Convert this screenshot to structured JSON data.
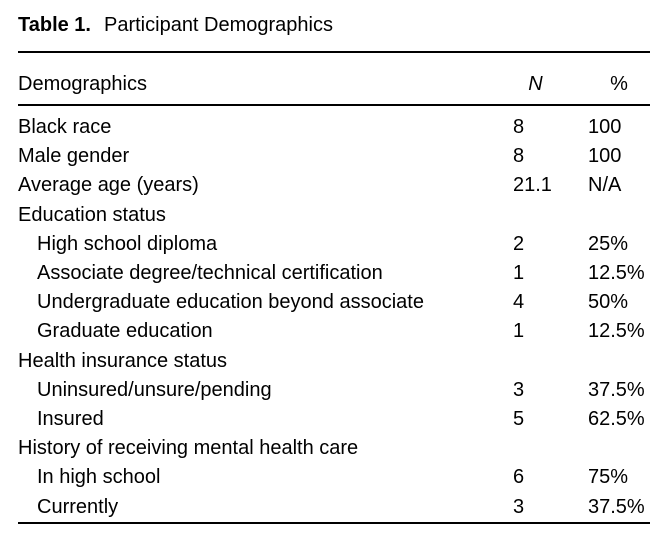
{
  "title": {
    "label": "Table 1.",
    "caption": "Participant Demographics"
  },
  "table": {
    "headers": [
      "Demographics",
      "N",
      "%"
    ],
    "rows": [
      {
        "label": "Black race",
        "n": "8",
        "pct": "100",
        "indent": false
      },
      {
        "label": "Male gender",
        "n": "8",
        "pct": "100",
        "indent": false
      },
      {
        "label": "Average age (years)",
        "n": "21.1",
        "pct": "N/A",
        "indent": false
      },
      {
        "label": "Education status",
        "n": "",
        "pct": "",
        "indent": false
      },
      {
        "label": "High school diploma",
        "n": "2",
        "pct": "25%",
        "indent": true
      },
      {
        "label": "Associate degree/technical certification",
        "n": "1",
        "pct": "12.5%",
        "indent": true
      },
      {
        "label": "Undergraduate education beyond associate",
        "n": "4",
        "pct": "50%",
        "indent": true
      },
      {
        "label": "Graduate education",
        "n": "1",
        "pct": "12.5%",
        "indent": true
      },
      {
        "label": "Health insurance status",
        "n": "",
        "pct": "",
        "indent": false
      },
      {
        "label": "Uninsured/unsure/pending",
        "n": "3",
        "pct": "37.5%",
        "indent": true
      },
      {
        "label": "Insured",
        "n": "5",
        "pct": "62.5%",
        "indent": true
      },
      {
        "label": "History of receiving mental health care",
        "n": "",
        "pct": "",
        "indent": false
      },
      {
        "label": "In high school",
        "n": "6",
        "pct": "75%",
        "indent": true
      },
      {
        "label": "Currently",
        "n": "3",
        "pct": "37.5%",
        "indent": true
      }
    ]
  },
  "colors": {
    "text": "#000000",
    "background": "#ffffff",
    "rule": "#000000"
  }
}
